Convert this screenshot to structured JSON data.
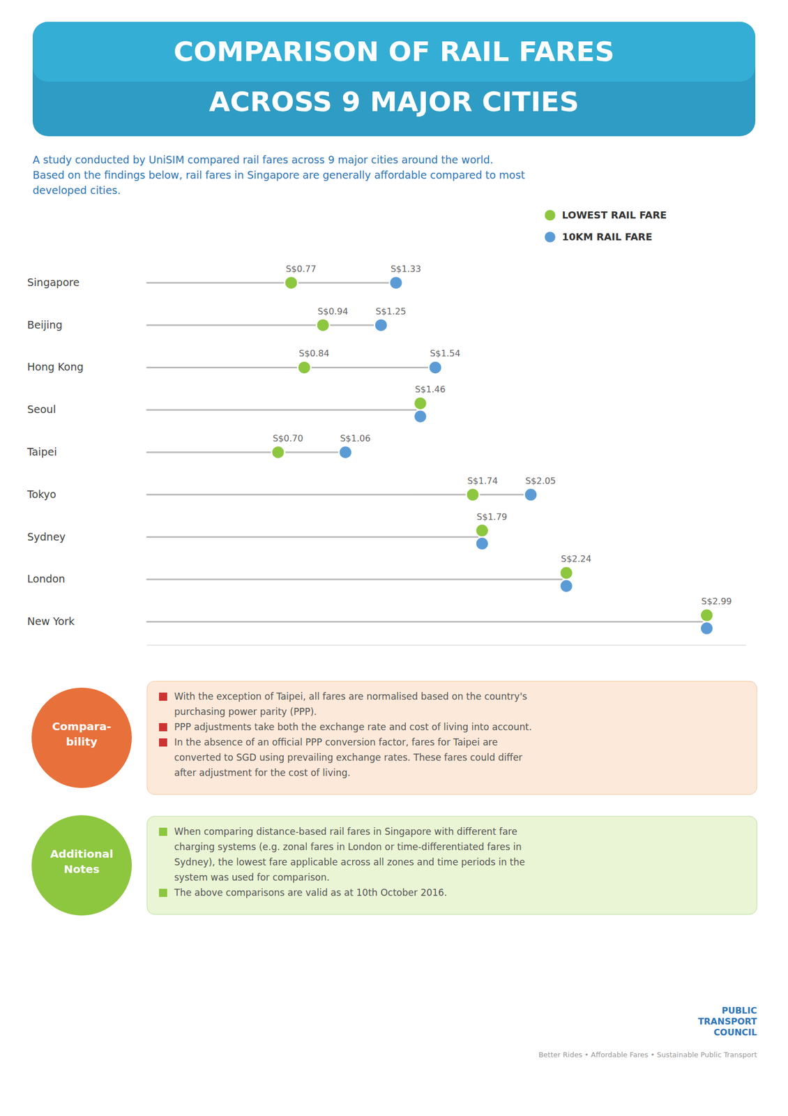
{
  "chart_data": {
    "type": "dot",
    "orientation": "horizontal",
    "title": [
      "COMPARISON OF RAIL FARES",
      "ACROSS 9 MAJOR CITIES"
    ],
    "subtitle": [
      "A study conducted by UniSIM compared rail fares across 9 major cities around the world.",
      "Based on the findings below, rail fares in Singapore are generally affordable compared to most",
      "developed cities."
    ],
    "categories": [
      "Singapore",
      "Beijing",
      "Hong Kong",
      "Seoul",
      "Taipei",
      "Tokyo",
      "Sydney",
      "London",
      "New York"
    ],
    "series": [
      {
        "name": "LOWEST RAIL FARE",
        "color": "#8DC63F",
        "values": [
          0.77,
          0.94,
          0.84,
          1.46,
          0.7,
          1.74,
          1.79,
          2.24,
          2.99
        ],
        "value_labels": [
          "S$0.77",
          "S$0.94",
          "S$0.84",
          "S$1.46",
          "S$0.70",
          "S$1.74",
          "S$1.79",
          "S$2.24",
          "S$2.99"
        ]
      },
      {
        "name": "10KM RAIL FARE",
        "color": "#5B9BD5",
        "values": [
          1.33,
          1.25,
          1.54,
          1.46,
          1.06,
          2.05,
          1.79,
          2.24,
          2.99
        ],
        "value_labels": [
          "S$1.33",
          "S$1.25",
          "S$1.54",
          null,
          "S$1.06",
          "S$2.05",
          null,
          null,
          null
        ]
      }
    ],
    "xlim": [
      0,
      3.2
    ],
    "tick_labels": false,
    "grid": false,
    "legend": "top-right",
    "data_labels": true,
    "annotations": [
      {
        "heading": [
          "Compara-",
          "bility"
        ],
        "items": [
          [
            "With the exception of Taipei, all fares are normalised based on the country's",
            "purchasing power parity (PPP)."
          ],
          [
            "PPP adjustments take both the exchange rate and cost of living into account."
          ],
          [
            "In the absence of an official PPP conversion factor, fares for Taipei are",
            "converted to SGD using prevailing exchange rates. These fares could differ",
            "after adjustment for the cost of living."
          ]
        ]
      },
      {
        "heading": [
          "Additional",
          "Notes"
        ],
        "items": [
          [
            "When comparing distance-based rail fares in Singapore with different fare",
            "charging systems (e.g. zonal fares in London or time-differentiated fares in",
            "Sydney), the lowest fare applicable across all zones and time periods in the",
            "system was used for comparison."
          ],
          [
            "The above comparisons are valid as at 10th October 2016."
          ]
        ]
      },
      {
        "lines": [
          "PUBLIC",
          "TRANSPORT",
          "COUNCIL"
        ]
      },
      {
        "lines": [
          "Better Rides  •  Affordable Fares  •  Sustainable Public Transport"
        ]
      }
    ]
  }
}
